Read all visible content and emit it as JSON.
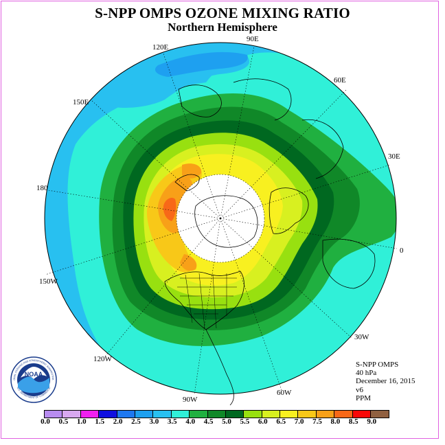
{
  "title": "S-NPP OMPS OZONE MIXING RATIO",
  "subtitle": "Northern Hemisphere",
  "longitude_labels": [
    "120E",
    "90E",
    "60E",
    "150E",
    "30E",
    "180",
    "0",
    "150W",
    "30W",
    "120W",
    "60W",
    "90W"
  ],
  "info": {
    "instrument": "S-NPP OMPS",
    "pressure": "40 hPa",
    "date": "December 16, 2015",
    "version": "v6",
    "units": "PPM"
  },
  "logo": {
    "text": "NOAA",
    "ring_text_top": "NATIONAL OCEANIC AND ATMOSPHERIC ADMINISTRATION",
    "ring_text_bottom": "U.S. DEPARTMENT OF COMMERCE"
  },
  "colorbar": {
    "ticks": [
      "0.0",
      "0.5",
      "1.0",
      "1.5",
      "2.0",
      "2.5",
      "3.0",
      "3.5",
      "4.0",
      "4.5",
      "5.0",
      "5.5",
      "6.0",
      "6.5",
      "7.0",
      "7.5",
      "8.0",
      "8.5",
      "9.0"
    ],
    "colors": [
      "#b88cf0",
      "#d8a8f0",
      "#f020f0",
      "#1010e0",
      "#1e78f0",
      "#1ea0f0",
      "#28c0f0",
      "#30f0d8",
      "#20b040",
      "#108828",
      "#006820",
      "#98e010",
      "#d8f020",
      "#f8f020",
      "#f8c818",
      "#f8a018",
      "#f86818",
      "#f80808",
      "#906040"
    ]
  }
}
